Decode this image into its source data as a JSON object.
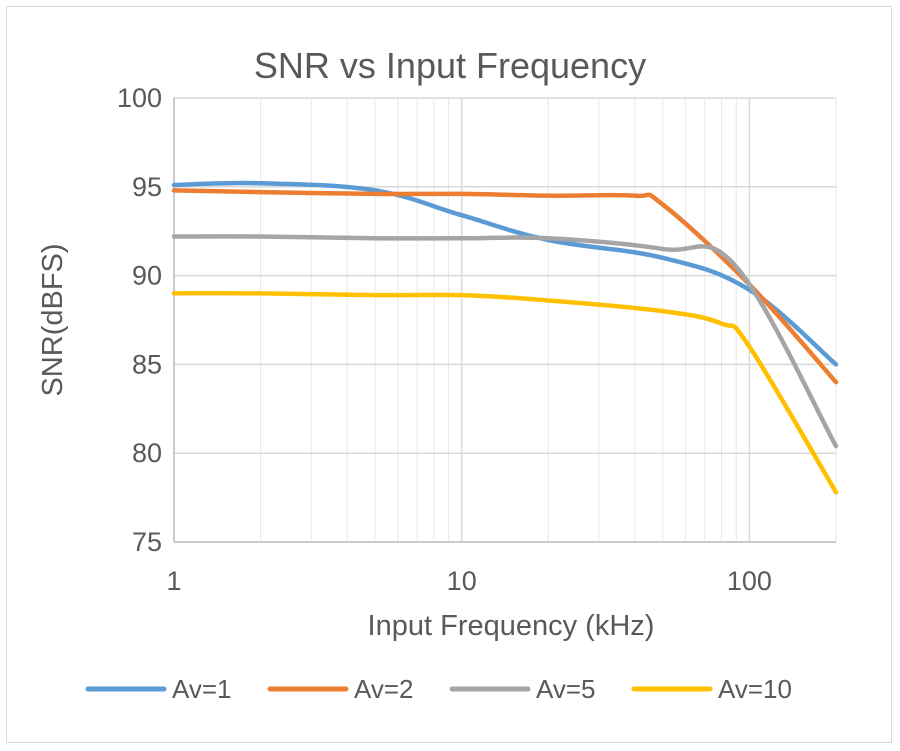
{
  "chart_data": {
    "type": "line",
    "title": "SNR vs Input Frequency",
    "xlabel": "Input Frequency (kHz)",
    "ylabel": "SNR(dBFS)",
    "x_scale": "log",
    "xlim": [
      1,
      200
    ],
    "ylim": [
      75,
      100
    ],
    "x_ticks": [
      1,
      10,
      100
    ],
    "x_tick_labels": [
      "1",
      "10",
      "100"
    ],
    "y_ticks": [
      75,
      80,
      85,
      90,
      95,
      100
    ],
    "y_tick_labels": [
      "75",
      "80",
      "85",
      "90",
      "95",
      "100"
    ],
    "grid": true,
    "legend_position": "bottom",
    "series": [
      {
        "name": "Av=1",
        "color": "#5b9bd5",
        "x": [
          1,
          2,
          5,
          10,
          20,
          50,
          100,
          200
        ],
        "y": [
          95.1,
          95.2,
          94.8,
          93.4,
          92.0,
          91.0,
          89.2,
          85.0
        ]
      },
      {
        "name": "Av=2",
        "color": "#ed7d31",
        "x": [
          1,
          2,
          5,
          10,
          20,
          40,
          50,
          100,
          200
        ],
        "y": [
          94.8,
          94.7,
          94.6,
          94.6,
          94.5,
          94.5,
          94.0,
          89.5,
          84.0
        ]
      },
      {
        "name": "Av=5",
        "color": "#a5a5a5",
        "x": [
          1,
          2,
          5,
          10,
          20,
          50,
          90,
          200
        ],
        "y": [
          92.2,
          92.2,
          92.1,
          92.1,
          92.1,
          91.5,
          90.5,
          80.4
        ]
      },
      {
        "name": "Av=10",
        "color": "#ffc000",
        "x": [
          1,
          2,
          5,
          10,
          20,
          50,
          80,
          100,
          200
        ],
        "y": [
          89.0,
          89.0,
          88.9,
          88.9,
          88.6,
          88.0,
          87.3,
          86.0,
          77.8
        ]
      }
    ]
  }
}
